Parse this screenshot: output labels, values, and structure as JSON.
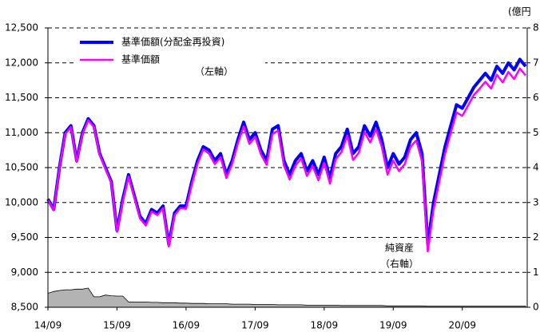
{
  "chart_data": {
    "type": "line",
    "annotations": {
      "left_axis": "（左軸）",
      "net_assets": [
        "純資産",
        "（右軸）"
      ],
      "y2_unit": "(億円"
    },
    "x": [
      "14/09",
      "14/10",
      "14/11",
      "14/12",
      "15/01",
      "15/02",
      "15/03",
      "15/04",
      "15/05",
      "15/06",
      "15/07",
      "15/08",
      "15/09",
      "15/10",
      "15/11",
      "15/12",
      "16/01",
      "16/02",
      "16/03",
      "16/04",
      "16/05",
      "16/06",
      "16/07",
      "16/08",
      "16/09",
      "16/10",
      "16/11",
      "16/12",
      "17/01",
      "17/02",
      "17/03",
      "17/04",
      "17/05",
      "17/06",
      "17/07",
      "17/08",
      "17/09",
      "17/10",
      "17/11",
      "17/12",
      "18/01",
      "18/02",
      "18/03",
      "18/04",
      "18/05",
      "18/06",
      "18/07",
      "18/08",
      "18/09",
      "18/10",
      "18/11",
      "18/12",
      "19/01",
      "19/02",
      "19/03",
      "19/04",
      "19/05",
      "19/06",
      "19/07",
      "19/08",
      "19/09",
      "19/10",
      "19/11",
      "19/12",
      "20/01",
      "20/02",
      "20/03",
      "20/04",
      "20/05",
      "20/06",
      "20/07",
      "20/08",
      "20/09",
      "20/10",
      "20/11",
      "20/12",
      "21/01",
      "21/02",
      "21/03",
      "21/04",
      "21/05",
      "21/06",
      "21/07",
      "21/08"
    ],
    "xticks": [
      "14/09",
      "15/09",
      "16/09",
      "17/09",
      "18/09",
      "19/09",
      "20/09"
    ],
    "series": [
      {
        "name": "基準価額(分配金再投資)",
        "color": "#0000ff",
        "values": [
          10050,
          9900,
          10500,
          11000,
          11100,
          10600,
          11000,
          11200,
          11100,
          10700,
          10500,
          10300,
          9600,
          10050,
          10400,
          10100,
          9800,
          9700,
          9900,
          9850,
          9950,
          9400,
          9850,
          9950,
          9950,
          10300,
          10600,
          10800,
          10750,
          10600,
          10700,
          10400,
          10600,
          10900,
          11150,
          10900,
          11000,
          10750,
          10600,
          11050,
          11100,
          10600,
          10400,
          10600,
          10700,
          10450,
          10600,
          10400,
          10650,
          10350,
          10700,
          10800,
          11050,
          10700,
          10800,
          11100,
          10950,
          11150,
          10900,
          10500,
          10700,
          10550,
          10650,
          10900,
          11000,
          10700,
          9400,
          10000,
          10400,
          10800,
          11100,
          11400,
          11350,
          11500,
          11650,
          11750,
          11850,
          11750,
          11950,
          11850,
          12000,
          11900,
          12050,
          11950
        ]
      },
      {
        "name": "基準価額",
        "color": "#ff00ff",
        "values": [
          10040,
          9890,
          10490,
          10980,
          11080,
          10580,
          10980,
          11180,
          11080,
          10680,
          10480,
          10280,
          9580,
          10020,
          10370,
          10070,
          9770,
          9670,
          9870,
          9820,
          9920,
          9370,
          9820,
          9920,
          9910,
          10260,
          10560,
          10760,
          10700,
          10550,
          10650,
          10350,
          10550,
          10850,
          11090,
          10840,
          10940,
          10690,
          10540,
          10980,
          11030,
          10530,
          10330,
          10530,
          10630,
          10380,
          10520,
          10320,
          10570,
          10270,
          10620,
          10720,
          10960,
          10610,
          10710,
          11010,
          10860,
          11050,
          10800,
          10400,
          10600,
          10450,
          10550,
          10800,
          10890,
          10590,
          9300,
          9900,
          10300,
          10700,
          11000,
          11290,
          11240,
          11390,
          11540,
          11630,
          11730,
          11630,
          11830,
          11720,
          11870,
          11770,
          11920,
          11820
        ]
      },
      {
        "name": "純資産",
        "type": "area",
        "axis": "y2",
        "color": "#b3b3b3",
        "values": [
          0.4,
          0.45,
          0.48,
          0.5,
          0.5,
          0.52,
          0.52,
          0.55,
          0.3,
          0.3,
          0.35,
          0.33,
          0.32,
          0.32,
          0.15,
          0.15,
          0.15,
          0.15,
          0.14,
          0.14,
          0.13,
          0.13,
          0.13,
          0.12,
          0.12,
          0.11,
          0.11,
          0.11,
          0.1,
          0.1,
          0.1,
          0.1,
          0.09,
          0.09,
          0.09,
          0.09,
          0.08,
          0.08,
          0.08,
          0.08,
          0.07,
          0.07,
          0.07,
          0.07,
          0.07,
          0.06,
          0.06,
          0.06,
          0.06,
          0.06,
          0.06,
          0.05,
          0.05,
          0.05,
          0.05,
          0.05,
          0.05,
          0.05,
          0.05,
          0.04,
          0.04,
          0.04,
          0.04,
          0.04,
          0.04,
          0.04,
          0.03,
          0.03,
          0.03,
          0.03,
          0.03,
          0.03,
          0.03,
          0.03,
          0.03,
          0.03,
          0.03,
          0.03,
          0.03,
          0.03,
          0.03,
          0.03,
          0.03,
          0.03
        ]
      }
    ],
    "ylim": [
      8500,
      12500
    ],
    "yticks": [
      {
        "value": 8500,
        "label": "8,500"
      },
      {
        "value": 9000,
        "label": "9,000"
      },
      {
        "value": 9500,
        "label": "9,500"
      },
      {
        "value": 10000,
        "label": "10,000"
      },
      {
        "value": 10500,
        "label": "10,500"
      },
      {
        "value": 11000,
        "label": "11,000"
      },
      {
        "value": 11500,
        "label": "11,500"
      },
      {
        "value": 12000,
        "label": "12,000"
      },
      {
        "value": 12500,
        "label": "12,500"
      }
    ],
    "y2lim": [
      0,
      8
    ],
    "y2ticks": [
      0,
      1,
      2,
      3,
      4,
      5,
      6,
      7,
      8
    ],
    "grid": true
  }
}
